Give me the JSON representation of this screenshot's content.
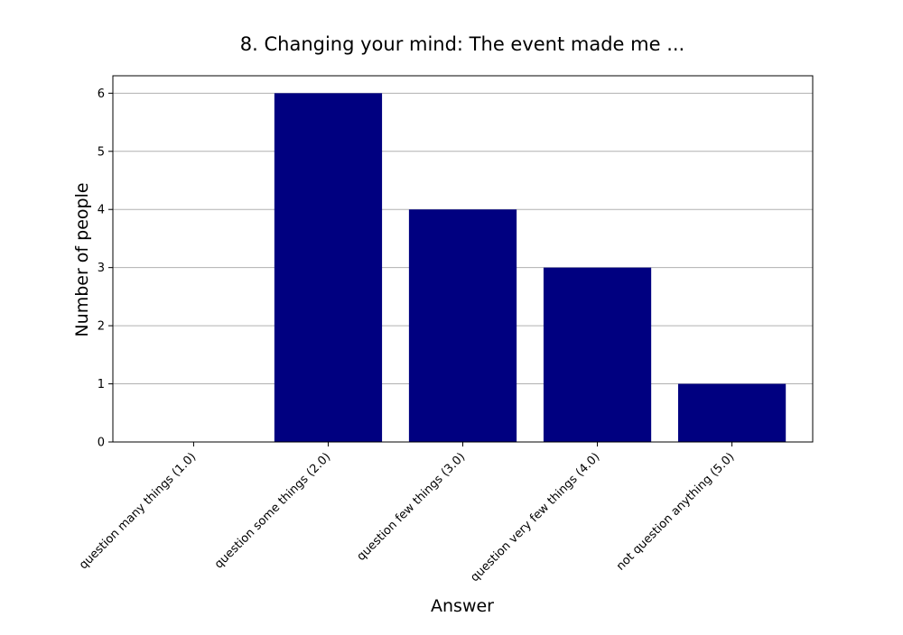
{
  "chart_data": {
    "type": "bar",
    "title": "8. Changing your mind: The event made me ...",
    "xlabel": "Answer",
    "ylabel": "Number of people",
    "categories": [
      "question many things (1.0)",
      "question some things (2.0)",
      "question few things (3.0)",
      "question very few things (4.0)",
      "not question anything (5.0)"
    ],
    "values": [
      0,
      6,
      4,
      3,
      1
    ],
    "ylim": [
      0,
      6.3
    ],
    "yticks": [
      0,
      1,
      2,
      3,
      4,
      5,
      6
    ],
    "grid": "y",
    "legend": "none",
    "bar_color": "#000080"
  }
}
